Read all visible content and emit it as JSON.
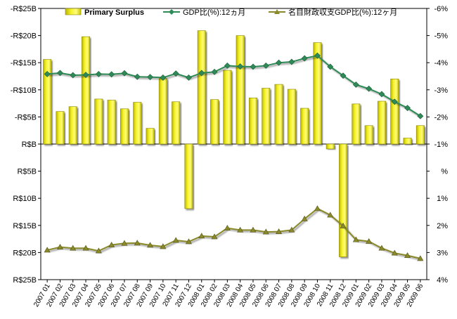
{
  "chart_data": {
    "type": "bar+line",
    "categories": [
      "2007 01",
      "2007 02",
      "2007 03",
      "2007 04",
      "2007 05",
      "2007 06",
      "2007 07",
      "2007 08",
      "2007 09",
      "2007 10",
      "2007 11",
      "2007 12",
      "2008 01",
      "2008 02",
      "2008 03",
      "2008 04",
      "2008 05",
      "2008 06",
      "2008 07",
      "2008 08",
      "2008 09",
      "2008 10",
      "2008 11",
      "2008 12",
      "2009 01",
      "2009 02",
      "2009 03",
      "2009 04",
      "2009 05",
      "2009 06"
    ],
    "left_axis": {
      "min": -25,
      "max": 25,
      "ticks": [
        {
          "value": 25,
          "label": "-R$25B"
        },
        {
          "value": 20,
          "label": "-R$20B"
        },
        {
          "value": 15,
          "label": "-R$15B"
        },
        {
          "value": 10,
          "label": "-R$10B"
        },
        {
          "value": 5,
          "label": "-R$5B"
        },
        {
          "value": 0,
          "label": "R$B"
        },
        {
          "value": -5,
          "label": "R$5B"
        },
        {
          "value": -10,
          "label": "R$10B"
        },
        {
          "value": -15,
          "label": "R$15B"
        },
        {
          "value": -20,
          "label": "R$20B"
        },
        {
          "value": -25,
          "label": "R$25B"
        }
      ]
    },
    "right_axis": {
      "min": -6,
      "max": 4,
      "ticks": [
        {
          "value": -6,
          "label": "-6%"
        },
        {
          "value": -5,
          "label": "-5%"
        },
        {
          "value": -4,
          "label": "-4%"
        },
        {
          "value": -3,
          "label": "-3%"
        },
        {
          "value": -2,
          "label": "-2%"
        },
        {
          "value": -1,
          "label": "-1%"
        },
        {
          "value": 0,
          "label": "%"
        },
        {
          "value": 1,
          "label": "1%"
        },
        {
          "value": 2,
          "label": "2%"
        },
        {
          "value": 3,
          "label": "3%"
        },
        {
          "value": 4,
          "label": "4%"
        }
      ]
    },
    "series": [
      {
        "name": "Primary Surplus",
        "kind": "bar",
        "axis": "left",
        "color": "#f2ee1a",
        "values": [
          15.6,
          6.0,
          6.9,
          19.8,
          8.3,
          8.1,
          6.5,
          7.7,
          2.9,
          12.1,
          7.8,
          -11.9,
          20.9,
          8.2,
          13.6,
          20.0,
          8.5,
          10.3,
          11.0,
          10.1,
          6.6,
          18.7,
          -0.9,
          -20.8,
          7.4,
          3.4,
          7.9,
          12.0,
          1.1,
          3.4
        ]
      },
      {
        "name": "GDP比(%):12ヵ月",
        "kind": "line",
        "axis": "right",
        "marker": "diamond",
        "color": "#2e8b57",
        "values": [
          -3.58,
          -3.62,
          -3.54,
          -3.55,
          -3.58,
          -3.57,
          -3.61,
          -3.48,
          -3.47,
          -3.45,
          -3.6,
          -3.45,
          -3.62,
          -3.66,
          -3.89,
          -3.86,
          -3.85,
          -3.89,
          -4.0,
          -4.03,
          -4.16,
          -4.26,
          -3.85,
          -3.52,
          -3.19,
          -3.04,
          -2.84,
          -2.56,
          -2.33,
          -2.03
        ]
      },
      {
        "name": "名目財政収支GDP比(%):12ヶ月",
        "kind": "line",
        "axis": "right",
        "marker": "triangle",
        "color": "#8a8a2a",
        "values": [
          2.91,
          2.8,
          2.84,
          2.84,
          2.94,
          2.72,
          2.66,
          2.65,
          2.73,
          2.78,
          2.55,
          2.6,
          2.39,
          2.42,
          2.1,
          2.17,
          2.17,
          2.24,
          2.23,
          2.17,
          1.76,
          1.38,
          1.62,
          2.02,
          2.53,
          2.59,
          2.84,
          3.02,
          3.11,
          3.22
        ]
      }
    ],
    "legend_position": "top",
    "grid": false
  }
}
